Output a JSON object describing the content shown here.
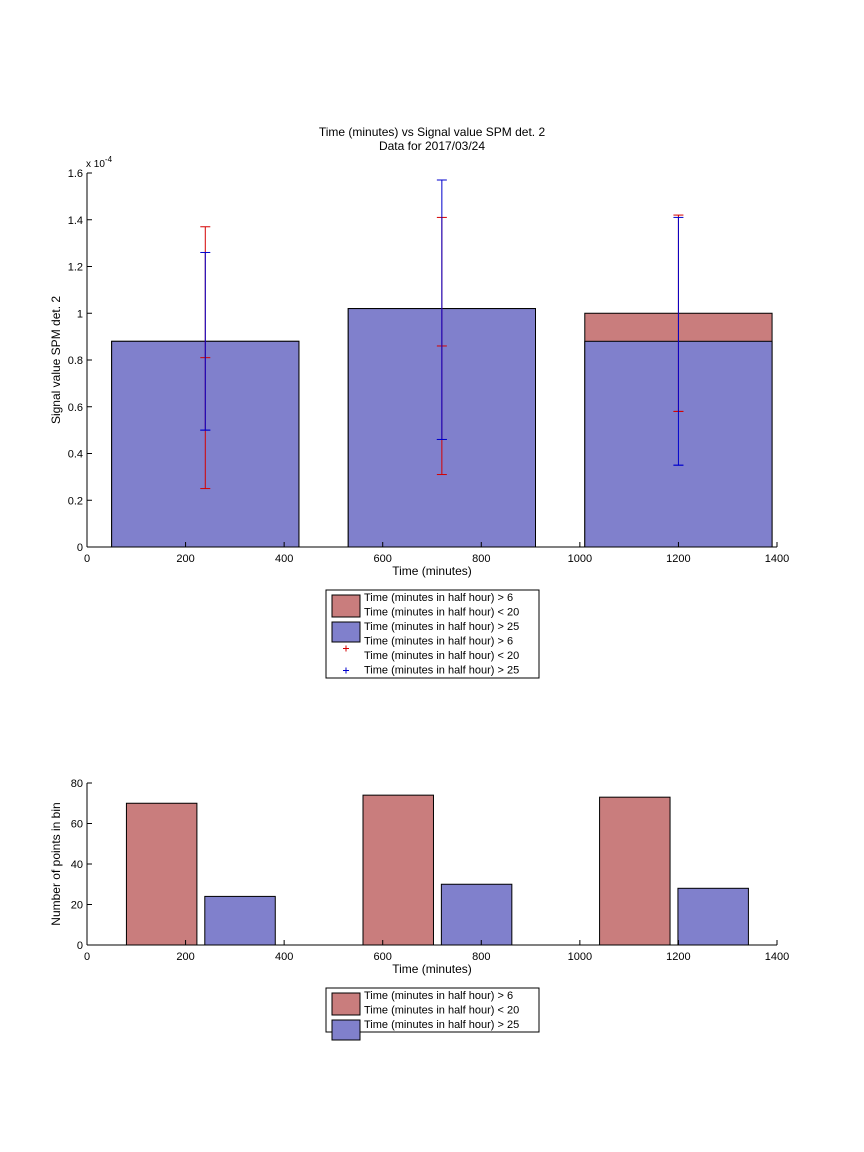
{
  "chart_data": [
    {
      "type": "bar",
      "title": "Time (minutes) vs Signal value SPM det. 2",
      "subtitle": "Data for 2017/03/24",
      "xlabel": "Time (minutes)",
      "ylabel": "Signal value SPM det. 2",
      "exponent_label": "x 10",
      "exponent_power": "-4",
      "xlim": [
        0,
        1400
      ],
      "ylim": [
        0,
        1.6
      ],
      "xticks": [
        "0",
        "200",
        "400",
        "600",
        "800",
        "1000",
        "1200",
        "1400"
      ],
      "yticks": [
        "0",
        "0.2",
        "0.4",
        "0.6",
        "0.8",
        "1",
        "1.2",
        "1.4",
        "1.6"
      ],
      "categories": [
        240,
        720,
        1200
      ],
      "bar_width": 380,
      "grid": false,
      "legend_position": "below",
      "series": [
        {
          "name": "Time (minutes in half hour) > 6\nTime (minutes in half hour) < 20",
          "values": [
            0.88,
            1.02,
            1.0
          ],
          "color": "#c97d7d",
          "errorbar": {
            "color": "#d40000",
            "center": [
              0.81,
              0.86,
              0.58
            ],
            "lower": [
              0.25,
              0.31,
              0.58
            ],
            "upper": [
              1.37,
              1.41,
              1.42
            ]
          }
        },
        {
          "name": "Time (minutes in half hour) > 25",
          "values": [
            0.88,
            1.02,
            0.88
          ],
          "color": "#8080cc",
          "errorbar": {
            "color": "#0000cc",
            "center": [
              0.5,
              0.46,
              0.35
            ],
            "lower": [
              0.5,
              0.46,
              0.35
            ],
            "upper": [
              1.26,
              1.57,
              1.41
            ]
          }
        }
      ],
      "legend": [
        {
          "kind": "patch",
          "color": "#c97d7d",
          "text": [
            "Time (minutes in half hour) > 6",
            "Time (minutes in half hour) < 20"
          ]
        },
        {
          "kind": "patch",
          "color": "#8080cc",
          "text": [
            "Time (minutes in half hour) > 25"
          ]
        },
        {
          "kind": "marker",
          "color": "#d40000",
          "text": [
            "Time (minutes in half hour) > 6",
            "Time (minutes in half hour) < 20"
          ]
        },
        {
          "kind": "marker",
          "color": "#0000cc",
          "text": [
            "Time (minutes in half hour) > 25"
          ]
        }
      ]
    },
    {
      "type": "bar",
      "title": "",
      "xlabel": "Time (minutes)",
      "ylabel": "Number of points in bin",
      "xlim": [
        0,
        1400
      ],
      "ylim": [
        0,
        80
      ],
      "xticks": [
        "0",
        "200",
        "400",
        "600",
        "800",
        "1000",
        "1200",
        "1400"
      ],
      "yticks": [
        "0",
        "20",
        "40",
        "60",
        "80"
      ],
      "categories": [
        240,
        720,
        1200
      ],
      "grid": false,
      "legend_position": "below",
      "series": [
        {
          "name": "Time (minutes in half hour) > 6\nTime (minutes in half hour) < 20",
          "values": [
            70,
            74,
            73
          ],
          "color": "#c97d7d"
        },
        {
          "name": "Time (minutes in half hour) > 25",
          "values": [
            24,
            30,
            28
          ],
          "color": "#8080cc"
        }
      ],
      "legend": [
        {
          "kind": "patch",
          "color": "#c97d7d",
          "text": [
            "Time (minutes in half hour) > 6",
            "Time (minutes in half hour) < 20"
          ]
        },
        {
          "kind": "patch",
          "color": "#8080cc",
          "text": [
            "Time (minutes in half hour) > 25"
          ]
        }
      ]
    }
  ]
}
